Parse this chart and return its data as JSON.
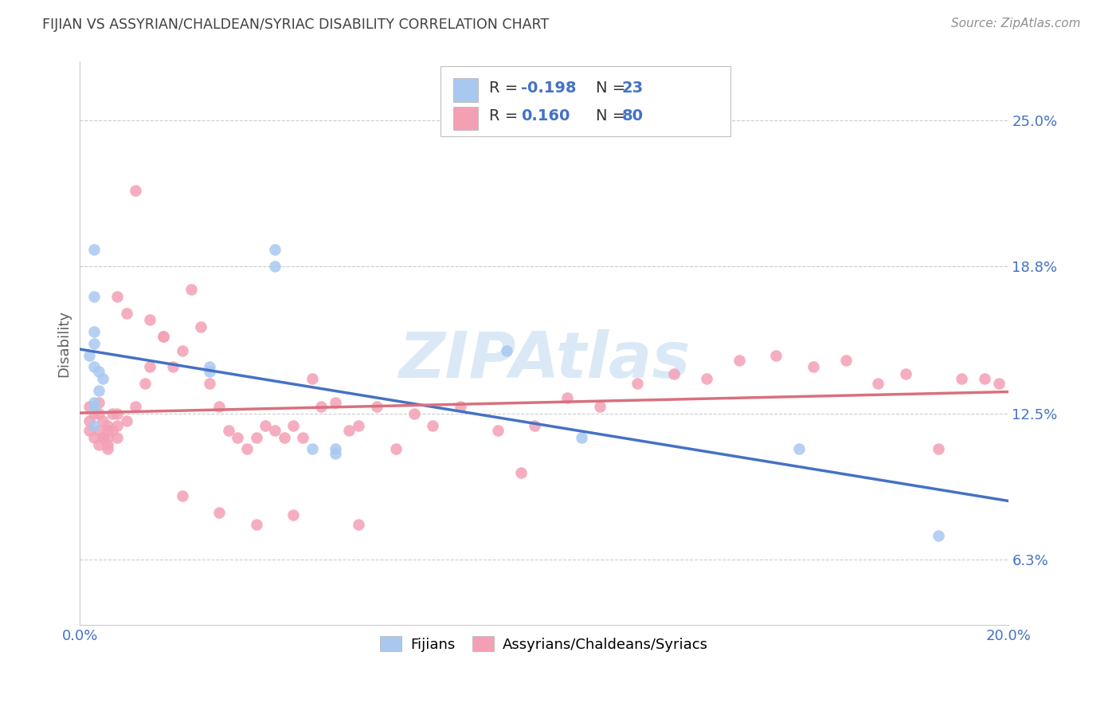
{
  "title": "FIJIAN VS ASSYRIAN/CHALDEAN/SYRIAC DISABILITY CORRELATION CHART",
  "source": "Source: ZipAtlas.com",
  "ylabel": "Disability",
  "ytick_labels": [
    "6.3%",
    "12.5%",
    "18.8%",
    "25.0%"
  ],
  "ytick_values": [
    0.063,
    0.125,
    0.188,
    0.25
  ],
  "xmin": 0.0,
  "xmax": 0.2,
  "ymin": 0.035,
  "ymax": 0.275,
  "color_fijian": "#a8c8f0",
  "color_assyrian": "#f4a0b4",
  "color_fijian_line": "#4472c4",
  "color_assyrian_line": "#d9707e",
  "color_blue_text": "#4472c4",
  "watermark_color": "#b8d4f0",
  "fijian_x": [
    0.042,
    0.042,
    0.003,
    0.003,
    0.003,
    0.003,
    0.002,
    0.003,
    0.004,
    0.005,
    0.004,
    0.003,
    0.003,
    0.003,
    0.028,
    0.028,
    0.05,
    0.055,
    0.055,
    0.092,
    0.108,
    0.155,
    0.185
  ],
  "fijian_y": [
    0.195,
    0.188,
    0.195,
    0.175,
    0.16,
    0.155,
    0.15,
    0.145,
    0.143,
    0.14,
    0.135,
    0.13,
    0.128,
    0.12,
    0.145,
    0.143,
    0.11,
    0.11,
    0.108,
    0.152,
    0.115,
    0.11,
    0.073
  ],
  "assyrian_x": [
    0.002,
    0.002,
    0.002,
    0.003,
    0.004,
    0.004,
    0.004,
    0.005,
    0.005,
    0.006,
    0.006,
    0.006,
    0.006,
    0.007,
    0.007,
    0.008,
    0.008,
    0.008,
    0.01,
    0.012,
    0.014,
    0.015,
    0.018,
    0.02,
    0.022,
    0.024,
    0.026,
    0.028,
    0.03,
    0.032,
    0.034,
    0.036,
    0.038,
    0.04,
    0.042,
    0.044,
    0.046,
    0.048,
    0.05,
    0.052,
    0.055,
    0.058,
    0.06,
    0.064,
    0.068,
    0.072,
    0.076,
    0.082,
    0.09,
    0.098,
    0.105,
    0.112,
    0.12,
    0.128,
    0.135,
    0.142,
    0.15,
    0.158,
    0.165,
    0.172,
    0.178,
    0.185,
    0.19,
    0.195,
    0.198,
    0.003,
    0.004,
    0.005,
    0.006,
    0.008,
    0.01,
    0.012,
    0.015,
    0.018,
    0.022,
    0.03,
    0.038,
    0.046,
    0.06,
    0.095
  ],
  "assyrian_y": [
    0.128,
    0.122,
    0.118,
    0.125,
    0.13,
    0.125,
    0.118,
    0.122,
    0.115,
    0.12,
    0.118,
    0.115,
    0.112,
    0.125,
    0.118,
    0.125,
    0.12,
    0.115,
    0.122,
    0.128,
    0.138,
    0.145,
    0.158,
    0.145,
    0.152,
    0.178,
    0.162,
    0.138,
    0.128,
    0.118,
    0.115,
    0.11,
    0.115,
    0.12,
    0.118,
    0.115,
    0.12,
    0.115,
    0.14,
    0.128,
    0.13,
    0.118,
    0.12,
    0.128,
    0.11,
    0.125,
    0.12,
    0.128,
    0.118,
    0.12,
    0.132,
    0.128,
    0.138,
    0.142,
    0.14,
    0.148,
    0.15,
    0.145,
    0.148,
    0.138,
    0.142,
    0.11,
    0.14,
    0.14,
    0.138,
    0.115,
    0.112,
    0.115,
    0.11,
    0.175,
    0.168,
    0.22,
    0.165,
    0.158,
    0.09,
    0.083,
    0.078,
    0.082,
    0.078,
    0.1
  ]
}
